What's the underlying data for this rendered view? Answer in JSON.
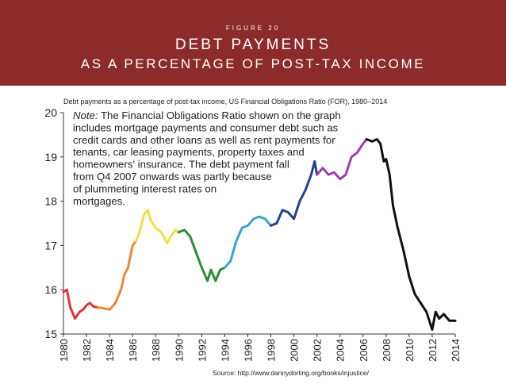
{
  "header": {
    "figure": "FIGURE 20",
    "title_lines": [
      "DEBT PAYMENTS",
      "AS A PERCENTAGE OF POST-TAX INCOME"
    ]
  },
  "chart_data": {
    "type": "line",
    "subtitle": "Debt payments as a percentage of post-tax income, US Financial Obligations Ratio (FOR), 1980–2014",
    "note_label": "Note:",
    "note_lines": [
      " The Financial Obligations Ratio shown on the graph",
      "includes mortgage payments and consumer debt such as",
      "credit cards and other loans as well as rent payments for",
      "tenants, car leasing payments, property taxes and",
      "homeowners' insurance. The debt payment fall",
      "from Q4 2007 onwards was partly because",
      "of plummeting interest rates on",
      "mortgages."
    ],
    "source": "Source: http://www.dannydorling.org/books/injustice/",
    "xlim": [
      1980,
      2014
    ],
    "xticks": [
      1980,
      1982,
      1984,
      1986,
      1988,
      1990,
      1992,
      1994,
      1996,
      1998,
      2000,
      2002,
      2004,
      2006,
      2008,
      2010,
      2012,
      2014
    ],
    "ylim": [
      15,
      20
    ],
    "yticks": [
      15,
      16,
      17,
      18,
      19,
      20
    ],
    "series": [
      {
        "color": "#d8383a",
        "x": [
          1980,
          1980.3,
          1980.6,
          1981,
          1981.4,
          1981.7,
          1982,
          1982.3,
          1982.6,
          1983
        ],
        "values": [
          15.95,
          16.0,
          15.6,
          15.35,
          15.5,
          15.55,
          15.65,
          15.7,
          15.62,
          15.6
        ]
      },
      {
        "color": "#e8883a",
        "x": [
          1983,
          1983.5,
          1984,
          1984.5,
          1985,
          1985.3,
          1985.6,
          1986,
          1986.3
        ],
        "values": [
          15.6,
          15.58,
          15.55,
          15.7,
          16.0,
          16.35,
          16.5,
          17.0,
          17.1
        ]
      },
      {
        "color": "#ece04a",
        "x": [
          1986.3,
          1986.6,
          1987,
          1987.3,
          1987.6,
          1988,
          1988.5,
          1989,
          1989.3,
          1989.7,
          1990
        ],
        "values": [
          17.1,
          17.3,
          17.7,
          17.8,
          17.55,
          17.4,
          17.3,
          17.05,
          17.2,
          17.35,
          17.3
        ]
      },
      {
        "color": "#2e8a3e",
        "x": [
          1990,
          1990.5,
          1991,
          1991.5,
          1992,
          1992.5,
          1992.8,
          1993.2,
          1993.6,
          1994
        ],
        "values": [
          17.3,
          17.35,
          17.2,
          16.85,
          16.5,
          16.2,
          16.45,
          16.2,
          16.45,
          16.5
        ]
      },
      {
        "color": "#3aa3c8",
        "x": [
          1994,
          1994.5,
          1995,
          1995.5,
          1996,
          1996.5,
          1997,
          1997.5,
          1998
        ],
        "values": [
          16.5,
          16.65,
          17.1,
          17.4,
          17.45,
          17.6,
          17.65,
          17.6,
          17.45
        ]
      },
      {
        "color": "#2c3e8c",
        "x": [
          1998,
          1998.5,
          1999,
          1999.5,
          2000,
          2000.5,
          2001,
          2001.5,
          2001.8,
          2002
        ],
        "values": [
          17.45,
          17.5,
          17.8,
          17.75,
          17.6,
          18.0,
          18.25,
          18.6,
          18.9,
          18.6
        ]
      },
      {
        "color": "#9b3fa8",
        "x": [
          2002,
          2002.5,
          2003,
          2003.5,
          2004,
          2004.5,
          2005,
          2005.5,
          2006,
          2006.3
        ],
        "values": [
          18.6,
          18.75,
          18.6,
          18.65,
          18.5,
          18.6,
          19.0,
          19.1,
          19.3,
          19.4
        ]
      },
      {
        "color": "#111111",
        "x": [
          2006.3,
          2006.8,
          2007.2,
          2007.5,
          2007.8,
          2008,
          2008.3,
          2008.6,
          2009,
          2009.5,
          2010,
          2010.5,
          2011,
          2011.5,
          2012,
          2012.3,
          2012.6,
          2013,
          2013.5,
          2014
        ],
        "values": [
          19.4,
          19.35,
          19.4,
          19.3,
          18.9,
          18.95,
          18.6,
          17.9,
          17.4,
          16.9,
          16.3,
          15.9,
          15.7,
          15.5,
          15.1,
          15.5,
          15.35,
          15.45,
          15.3,
          15.3
        ]
      }
    ]
  }
}
